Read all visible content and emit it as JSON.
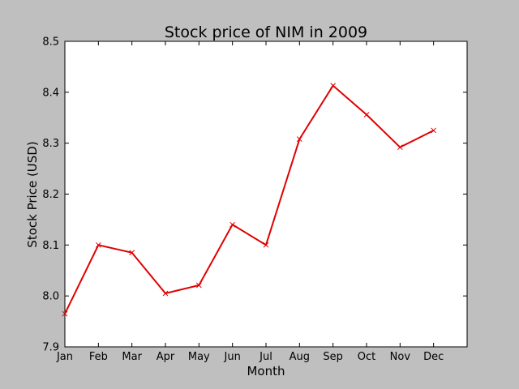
{
  "chart_data": {
    "type": "line",
    "title": "Stock price of NIM in 2009",
    "xlabel": "Month",
    "ylabel": "Stock Price (USD)",
    "categories": [
      "Jan",
      "Feb",
      "Mar",
      "Apr",
      "May",
      "Jun",
      "Jul",
      "Aug",
      "Sep",
      "Oct",
      "Nov",
      "Dec"
    ],
    "series": [
      {
        "name": "NIM",
        "color": "#e00000",
        "marker": "x",
        "values": [
          7.965,
          8.1,
          8.085,
          8.005,
          8.021,
          8.14,
          8.1,
          8.308,
          8.413,
          8.356,
          8.292,
          8.325
        ]
      }
    ],
    "ylim": [
      7.9,
      8.5
    ],
    "yticks": [
      "7.9",
      "8.0",
      "8.1",
      "8.2",
      "8.3",
      "8.4",
      "8.5"
    ],
    "xlim": [
      0,
      12
    ],
    "grid": false,
    "background_color": "#bfbfbf",
    "plot_background_color": "#ffffff"
  }
}
